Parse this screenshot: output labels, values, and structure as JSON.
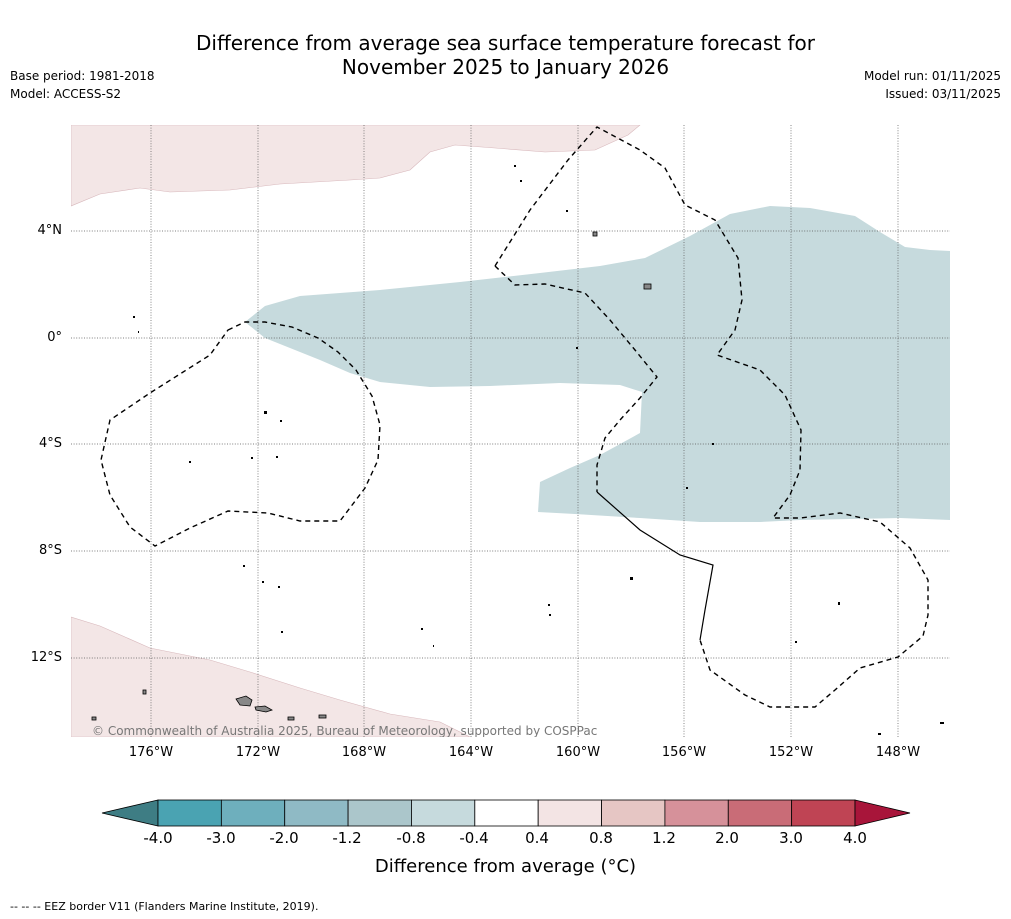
{
  "title": {
    "line1": "Difference from average sea surface temperature forecast for",
    "line2": "November 2025 to January 2026"
  },
  "meta": {
    "base_period": "Base period: 1981-2018",
    "model": "Model: ACCESS-S2",
    "model_run": "Model run: 01/11/2025",
    "issued": "Issued: 03/11/2025"
  },
  "map": {
    "lat_labels": [
      "4°N",
      "0°",
      "4°S",
      "8°S",
      "12°S"
    ],
    "lon_labels": [
      "176°W",
      "172°W",
      "168°W",
      "164°W",
      "160°W",
      "156°W",
      "152°W",
      "148°W"
    ],
    "copyright": "© Commonwealth of Australia 2025, Bureau of Meteorology, supported by COSPPac"
  },
  "colorbar": {
    "ticks": [
      "-4.0",
      "-3.0",
      "-2.0",
      "-1.2",
      "-0.8",
      "-0.4",
      "0.4",
      "0.8",
      "1.2",
      "2.0",
      "3.0",
      "4.0"
    ],
    "colors": [
      "#4aa3b2",
      "#6eafbd",
      "#8fbac5",
      "#abc6cb",
      "#c6dadd",
      "#ffffff",
      "#f3e4e4",
      "#e6c6c4",
      "#d6919a",
      "#c96c77",
      "#bf4454"
    ],
    "low_extend_color": "#3e7d84",
    "high_extend_color": "#a8153a",
    "label": "Difference from average (°C)"
  },
  "colors": {
    "cool": "#c6dadd",
    "warm": "#f3e6e6",
    "land": "#888888"
  },
  "footer": "-- -- -- EEZ border V11 (Flanders Marine Institute, 2019)."
}
